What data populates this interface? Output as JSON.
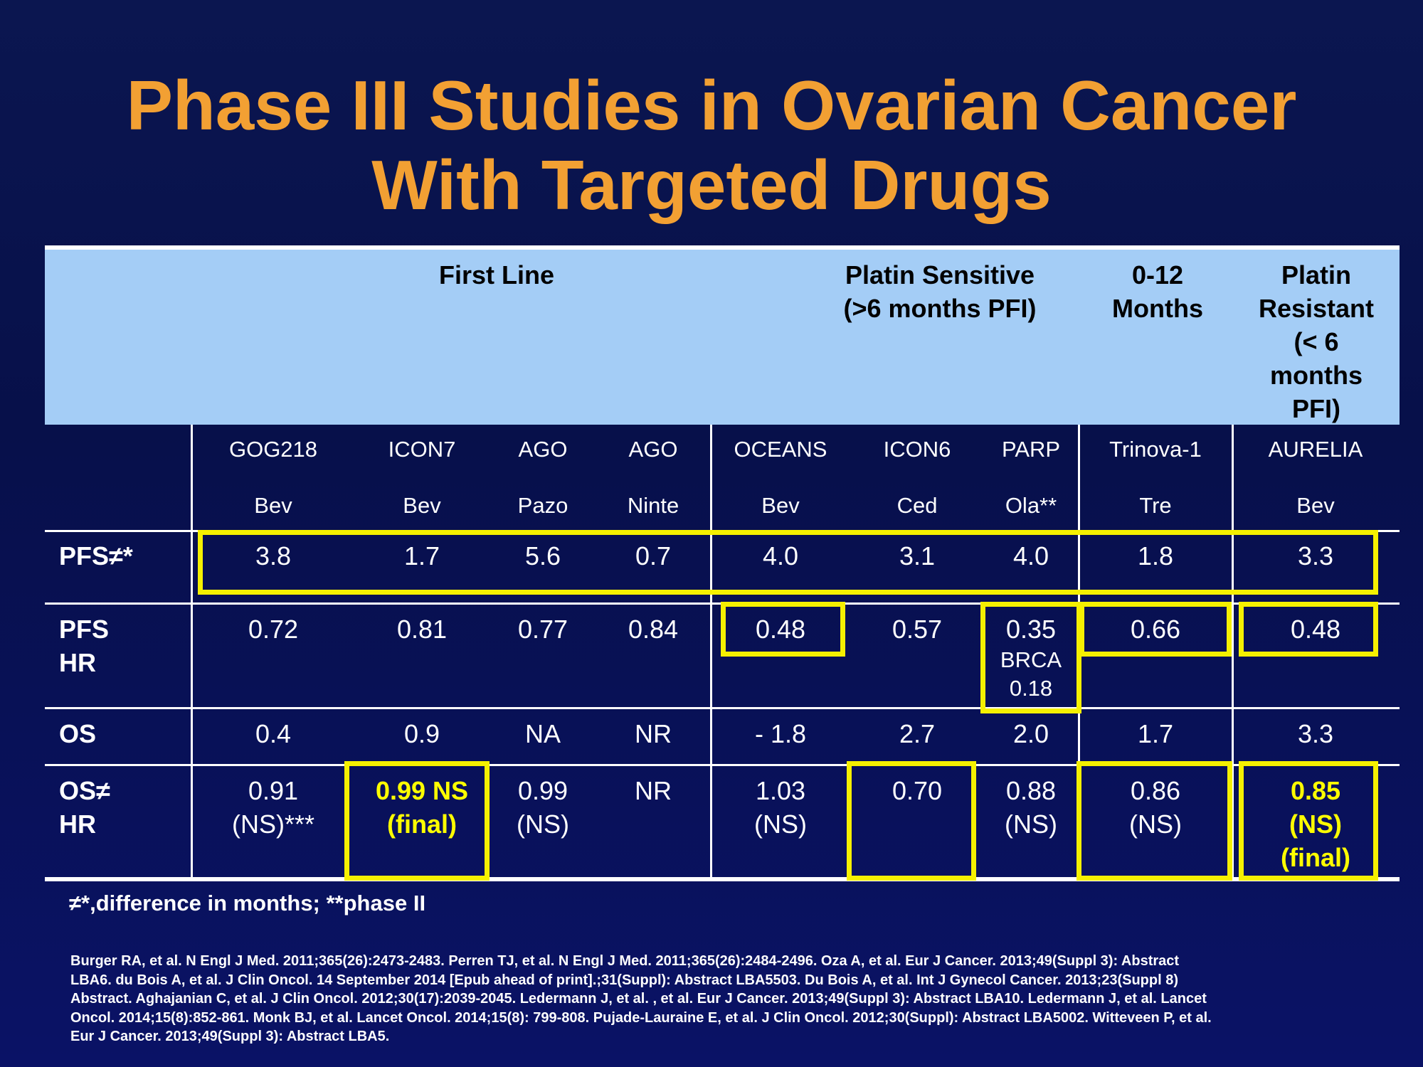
{
  "title": {
    "line1": "Phase III Studies in Ovarian Cancer",
    "line2": "With Targeted Drugs"
  },
  "header": {
    "first_line": "First Line",
    "platin_sensitive": [
      "Platin Sensitive",
      "(>6 months PFI)"
    ],
    "months_0_12": [
      "0-12",
      "Months"
    ],
    "platin_resistant": [
      "Platin",
      "Resistant",
      "(< 6",
      "months",
      "PFI)"
    ]
  },
  "studies": [
    {
      "name": "GOG218",
      "drug": "Bev"
    },
    {
      "name": "ICON7",
      "drug": "Bev"
    },
    {
      "name": "AGO",
      "drug": "Pazo"
    },
    {
      "name": "AGO",
      "drug": "Ninte"
    },
    {
      "name": "OCEANS",
      "drug": "Bev"
    },
    {
      "name": "ICON6",
      "drug": "Ced"
    },
    {
      "name": "PARP",
      "drug": "Ola**"
    },
    {
      "name": "Trinova-1",
      "drug": "Tre"
    },
    {
      "name": "AURELIA",
      "drug": "Bev"
    }
  ],
  "rows": {
    "pfs": {
      "label": "PFS≠*",
      "values": [
        "3.8",
        "1.7",
        "5.6",
        "0.7",
        "4.0",
        "3.1",
        "4.0",
        "1.8",
        "3.3"
      ]
    },
    "pfs_hr": {
      "label": [
        "PFS",
        "HR"
      ],
      "values": [
        "0.72",
        "0.81",
        "0.77",
        "0.84",
        "0.48",
        "0.57",
        "0.35",
        "0.66",
        "0.48"
      ],
      "parp_extra": [
        "BRCA",
        "0.18"
      ]
    },
    "os": {
      "label": "OS",
      "values": [
        "0.4",
        "0.9",
        "NA",
        "NR",
        "- 1.8",
        "2.7",
        "2.0",
        "1.7",
        "3.3"
      ]
    },
    "os_hr": {
      "label": [
        "OS≠",
        "HR"
      ],
      "values": [
        [
          "0.91",
          "(NS)***"
        ],
        [
          "0.99 NS",
          "(final)"
        ],
        [
          "0.99",
          "(NS)"
        ],
        [
          "NR"
        ],
        [
          "1.03",
          "(NS)"
        ],
        [
          "0.70"
        ],
        [
          "0.88",
          "(NS)"
        ],
        [
          "0.86",
          "(NS)"
        ],
        [
          "0.85",
          "(NS)",
          "(final)"
        ]
      ]
    }
  },
  "footnote": "≠*,difference in months; **phase II",
  "references": [
    "Burger RA, et al. N Engl J Med. 2011;365(26):2473-2483. Perren TJ, et al. N Engl J Med. 2011;365(26):2484-2496. Oza A, et al. Eur J Cancer. 2013;49(Suppl 3): Abstract",
    "LBA6. du Bois A, et al. J Clin Oncol. 14 September 2014 [Epub ahead of print].;31(Suppl): Abstract LBA5503. Du Bois A, et al. Int J Gynecol Cancer. 2013;23(Suppl 8)",
    "Abstract. Aghajanian C, et al. J Clin Oncol. 2012;30(17):2039-2045. Ledermann J, et al. , et al. Eur J Cancer. 2013;49(Suppl 3): Abstract LBA10. Ledermann J, et al. Lancet",
    "Oncol. 2014;15(8):852-861. Monk BJ, et al. Lancet Oncol. 2014;15(8): 799-808. Pujade-Lauraine E, et al. J Clin Oncol. 2012;30(Suppl): Abstract LBA5002. Witteveen P, et al.",
    "Eur J Cancer. 2013;49(Suppl 3): Abstract LBA5."
  ],
  "colors": {
    "title": "#f2a033",
    "header_bg": "#a4cdf6",
    "highlight": "#f5f000",
    "bg": "#0b1650"
  }
}
